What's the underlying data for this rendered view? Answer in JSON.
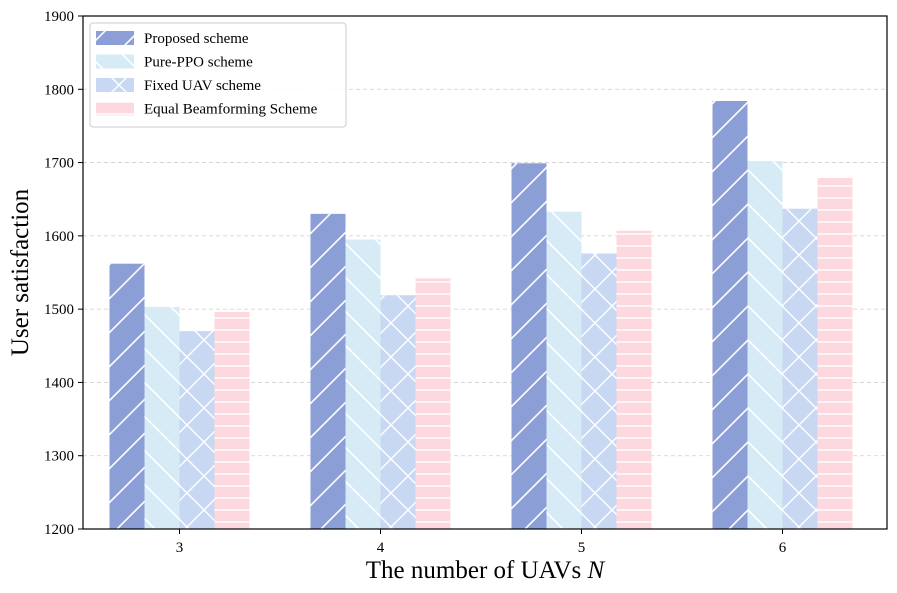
{
  "chart_data": {
    "type": "bar",
    "title": "",
    "xlabel": "The number of UAVs ",
    "xlabel_var": "N",
    "ylabel": "User satisfaction",
    "categories": [
      "3",
      "4",
      "5",
      "6"
    ],
    "ylim": [
      1200,
      1900
    ],
    "yticks": [
      1200,
      1300,
      1400,
      1500,
      1600,
      1700,
      1800,
      1900
    ],
    "grid": "y-dashed",
    "legend_position": "top-left",
    "series": [
      {
        "name": "Proposed scheme",
        "values": [
          1562,
          1630,
          1699,
          1784
        ],
        "color": "#8b9fd6",
        "hatch": "forward-slash"
      },
      {
        "name": "Pure-PPO scheme",
        "values": [
          1503,
          1595,
          1633,
          1702
        ],
        "color": "#d6ebf5",
        "hatch": "back-slash"
      },
      {
        "name": "Fixed UAV scheme",
        "values": [
          1470,
          1519,
          1576,
          1637
        ],
        "color": "#c8d8f2",
        "hatch": "cross"
      },
      {
        "name": "Equal Beamforming Scheme",
        "values": [
          1496,
          1542,
          1607,
          1679
        ],
        "color": "#fdd8de",
        "hatch": "horizontal"
      }
    ]
  }
}
